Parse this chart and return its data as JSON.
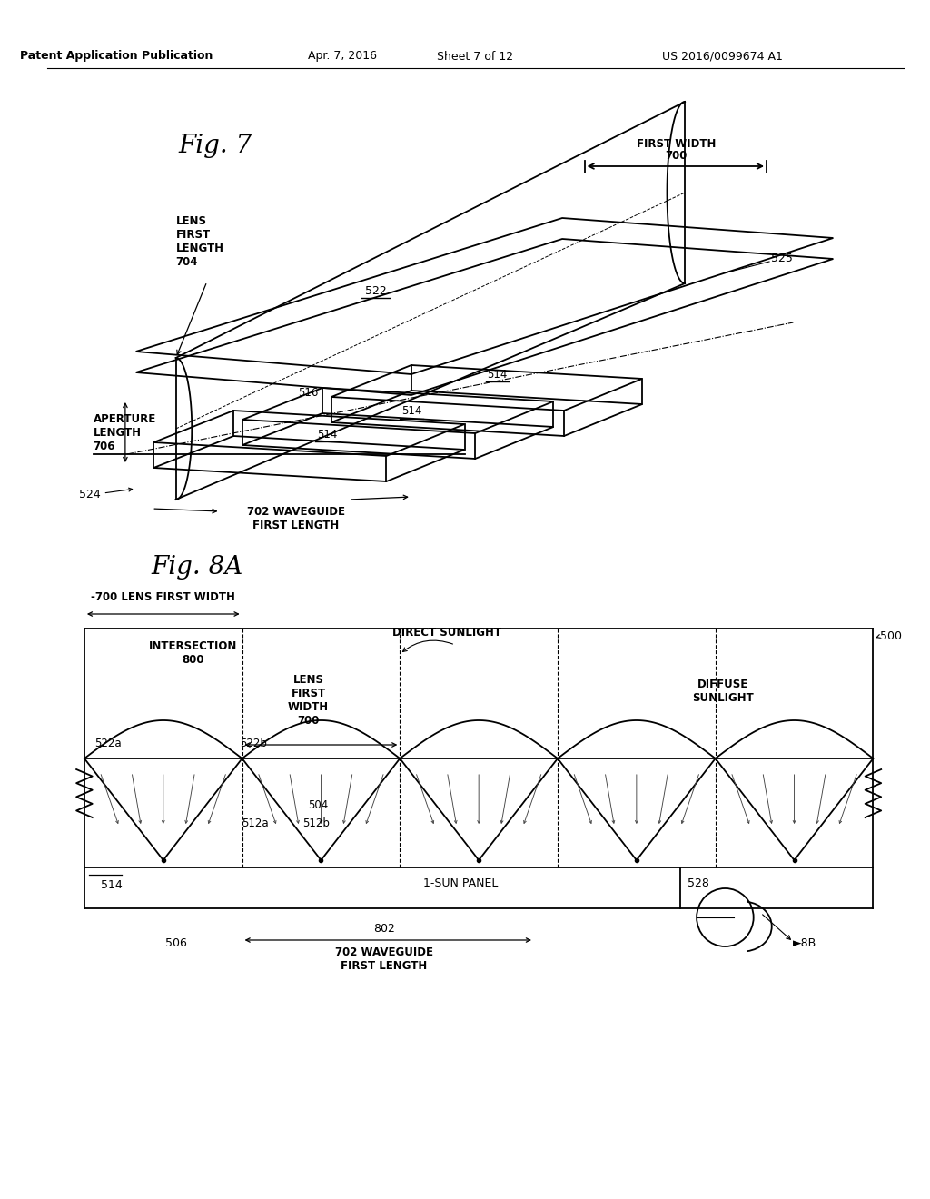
{
  "background_color": "#ffffff",
  "header_text": "Patent Application Publication",
  "header_date": "Apr. 7, 2016",
  "header_sheet": "Sheet 7 of 12",
  "header_patent": "US 2016/0099674 A1",
  "fig7_label": "Fig. 7",
  "fig8a_label": "Fig. 8A"
}
